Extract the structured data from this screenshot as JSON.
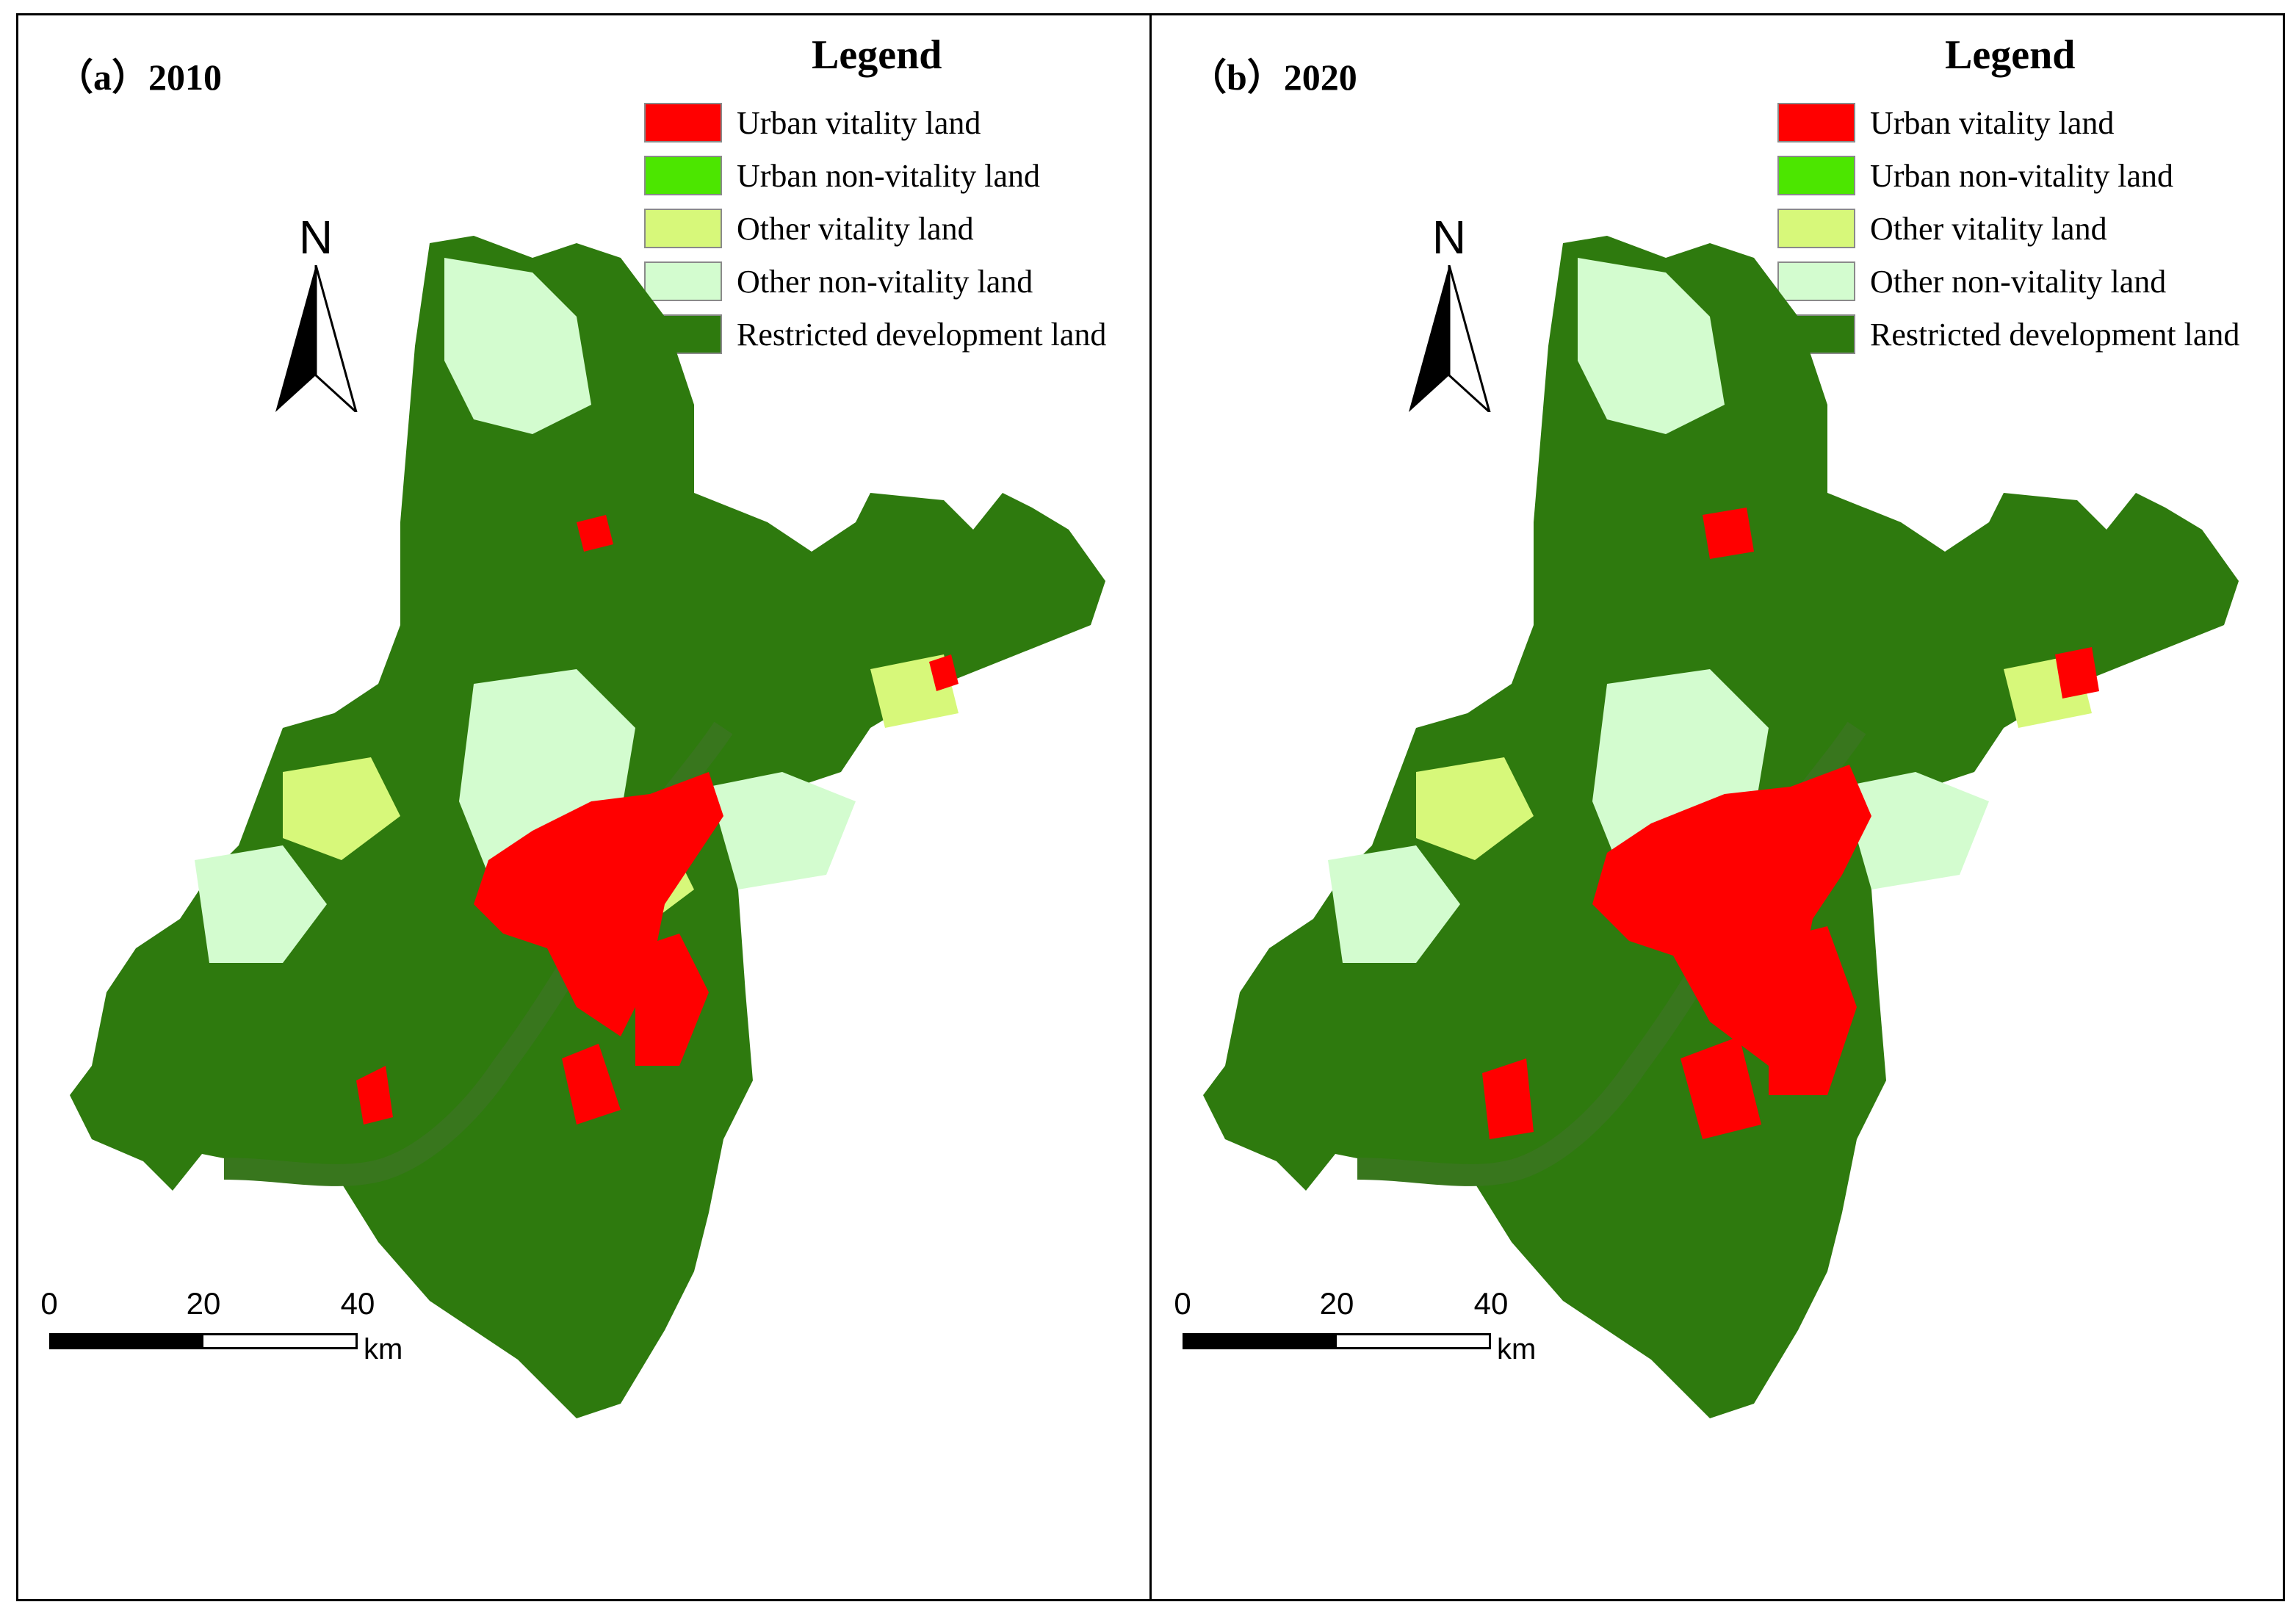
{
  "colors": {
    "urban_vitality": "#ff0000",
    "urban_non_vitality": "#4ce600",
    "other_vitality": "#d7f87a",
    "other_non_vitality": "#d3fccf",
    "restricted": "#2e7a0e",
    "river": "#38761d"
  },
  "panels": [
    {
      "title": "（a）2010",
      "legend_title": "Legend",
      "legend": [
        {
          "label": "Urban vitality land",
          "color": "#ff0000"
        },
        {
          "label": "Urban non-vitality land",
          "color": "#4ce600"
        },
        {
          "label": "Other vitality land",
          "color": "#d7f87a"
        },
        {
          "label": "Other non-vitality land",
          "color": "#d3fccf"
        },
        {
          "label": "Restricted development land",
          "color": "#2e7a0e"
        }
      ],
      "north_label": "N",
      "scale_ticks": [
        "0",
        "20",
        "40"
      ],
      "scale_unit": "km"
    },
    {
      "title": "（b）2020",
      "legend_title": "Legend",
      "legend": [
        {
          "label": "Urban vitality land",
          "color": "#ff0000"
        },
        {
          "label": "Urban non-vitality land",
          "color": "#4ce600"
        },
        {
          "label": "Other vitality land",
          "color": "#d7f87a"
        },
        {
          "label": "Other non-vitality land",
          "color": "#d3fccf"
        },
        {
          "label": "Restricted development land",
          "color": "#2e7a0e"
        }
      ],
      "north_label": "N",
      "scale_ticks": [
        "0",
        "20",
        "40"
      ],
      "scale_unit": "km"
    }
  ]
}
